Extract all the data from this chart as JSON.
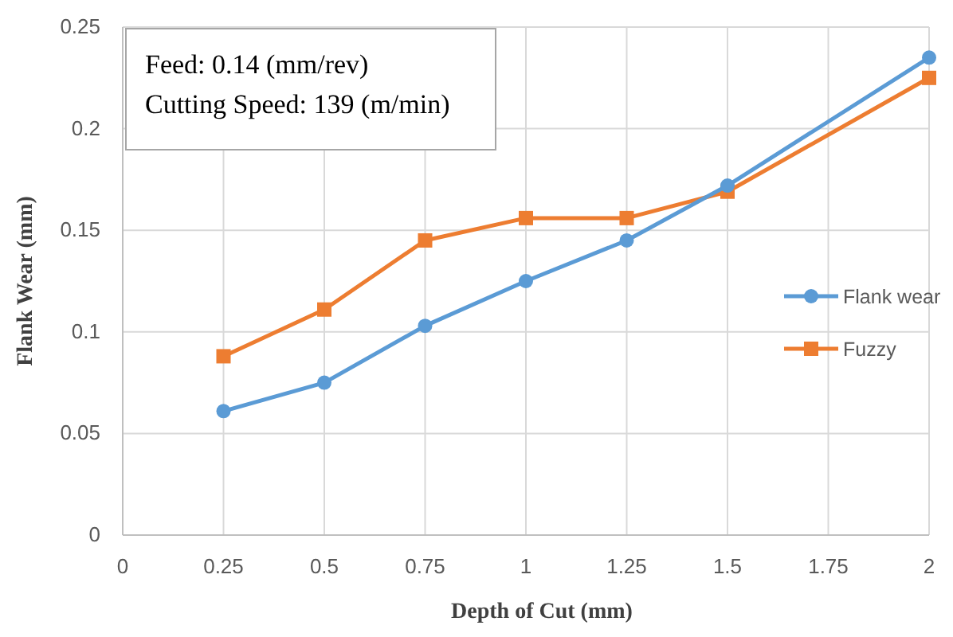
{
  "chart_data": {
    "type": "line",
    "xlabel": "Depth of Cut (mm)",
    "ylabel": "Flank Wear (mm)",
    "annotations": [
      "Feed: 0.14 (mm/rev)",
      "Cutting Speed: 139 (m/min)"
    ],
    "x": [
      0.25,
      0.5,
      0.75,
      1,
      1.25,
      1.5,
      2
    ],
    "series": [
      {
        "name": "Flank wear",
        "color": "#5b9bd5",
        "marker": "circle",
        "values": [
          0.061,
          0.075,
          0.103,
          0.125,
          0.145,
          0.172,
          0.235
        ]
      },
      {
        "name": "Fuzzy",
        "color": "#ed7d31",
        "marker": "square",
        "values": [
          0.088,
          0.111,
          0.145,
          0.156,
          0.156,
          0.169,
          0.225
        ]
      }
    ],
    "xlim": [
      0,
      2
    ],
    "xticks": [
      0,
      0.25,
      0.5,
      0.75,
      1,
      1.25,
      1.5,
      1.75,
      2
    ],
    "ylim": [
      0,
      0.25
    ],
    "yticks": [
      0,
      0.05,
      0.1,
      0.15,
      0.2,
      0.25
    ],
    "grid": true,
    "legend": "right",
    "line_style": "solid"
  }
}
